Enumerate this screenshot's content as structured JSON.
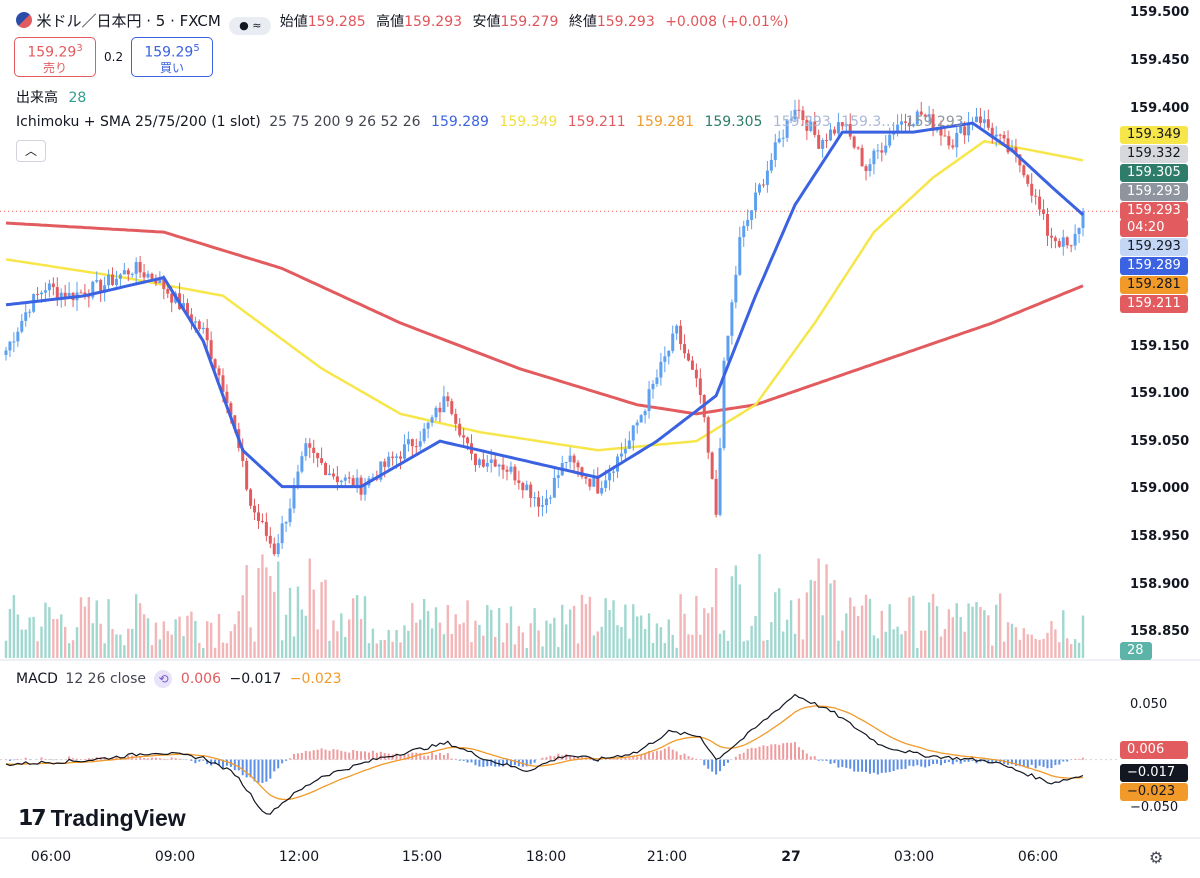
{
  "header": {
    "symbol": "米ドル／日本円 · 5 · FXCM",
    "open_label": "始値",
    "open": "159.285",
    "high_label": "高値",
    "high": "159.293",
    "low_label": "安値",
    "low": "159.279",
    "close_label": "終値",
    "close": "159.293",
    "change": "+0.008 (+0.01%)"
  },
  "trade": {
    "sell_price": "159.29",
    "sell_sup": "3",
    "sell_label": "売り",
    "spread": "0.2",
    "buy_price": "159.29",
    "buy_sup": "5",
    "buy_label": "買い"
  },
  "volume_legend": {
    "label": "出来高",
    "value": "28"
  },
  "ichimoku_legend": {
    "label": "Ichimoku + SMA 25/75/200 (1 slot)",
    "params": "25 75 200 9 26 52 26",
    "values": [
      "159.289",
      "159.349",
      "159.211",
      "159.281",
      "159.305",
      "159.293",
      "159.3…",
      "159.293"
    ]
  },
  "macd_legend": {
    "label": "MACD",
    "params": "12 26 close",
    "hist": "0.006",
    "macd": "−0.017",
    "signal": "−0.023"
  },
  "price_axis": [
    "159.500",
    "159.450",
    "159.400",
    "159.150",
    "159.100",
    "159.050",
    "159.000",
    "158.950",
    "158.900",
    "158.850"
  ],
  "price_badges": [
    {
      "value": "159.349",
      "color": "#f7e64a",
      "text_color": "#131722"
    },
    {
      "value": "159.332",
      "color": "#d6d8dc",
      "text_color": "#131722"
    },
    {
      "value": "159.305",
      "color": "#2e7d6a",
      "text_color": "#ffffff"
    },
    {
      "value": "159.293",
      "color": "#8f959e",
      "text_color": "#ffffff"
    },
    {
      "value": "159.293",
      "color": "#e25b5f",
      "text_color": "#ffffff"
    },
    {
      "value": "04:20",
      "color": "#e25b5f",
      "text_color": "#ffffff"
    },
    {
      "value": "159.293",
      "color": "#c3d6f5",
      "text_color": "#131722"
    },
    {
      "value": "159.289",
      "color": "#3b62e0",
      "text_color": "#ffffff"
    },
    {
      "value": "159.281",
      "color": "#f19a2a",
      "text_color": "#131722"
    },
    {
      "value": "159.211",
      "color": "#e25b5f",
      "text_color": "#ffffff"
    }
  ],
  "volume_badge": "28",
  "macd_axis": [
    "0.050",
    "−0.050"
  ],
  "macd_badges": [
    {
      "value": "0.006",
      "color": "#e25b5f",
      "text_color": "#ffffff"
    },
    {
      "value": "−0.017",
      "color": "#131722",
      "text_color": "#ffffff"
    },
    {
      "value": "−0.023",
      "color": "#f19a2a",
      "text_color": "#131722"
    }
  ],
  "time_axis": [
    {
      "label": "06:00"
    },
    {
      "label": "09:00"
    },
    {
      "label": "12:00"
    },
    {
      "label": "15:00"
    },
    {
      "label": "18:00"
    },
    {
      "label": "21:00"
    },
    {
      "label": "27"
    },
    {
      "label": "03:00"
    },
    {
      "label": "06:00"
    }
  ],
  "brand": "TradingView",
  "colors": {
    "up": "#5ea0f0",
    "down": "#e25b5f",
    "sma25": "#3b62e0",
    "sma75": "#f7e64a",
    "sma200": "#e25b5f"
  },
  "chart_data": {
    "type": "candlestick",
    "symbol": "USD/JPY",
    "interval": "5",
    "x_ticks": [
      "06:00",
      "09:00",
      "12:00",
      "15:00",
      "18:00",
      "21:00",
      "27",
      "03:00",
      "06:00"
    ],
    "ylim": [
      158.83,
      159.51
    ],
    "price_anchors": [
      [
        0,
        159.14
      ],
      [
        6,
        159.19
      ],
      [
        10,
        159.21
      ],
      [
        16,
        159.2
      ],
      [
        24,
        159.21
      ],
      [
        32,
        159.23
      ],
      [
        38,
        159.22
      ],
      [
        44,
        159.19
      ],
      [
        50,
        159.16
      ],
      [
        56,
        159.09
      ],
      [
        62,
        158.97
      ],
      [
        68,
        158.92
      ],
      [
        72,
        158.97
      ],
      [
        76,
        159.03
      ],
      [
        84,
        159.0
      ],
      [
        90,
        158.99
      ],
      [
        98,
        159.02
      ],
      [
        106,
        159.05
      ],
      [
        112,
        159.09
      ],
      [
        118,
        159.02
      ],
      [
        124,
        159.02
      ],
      [
        130,
        159.0
      ],
      [
        136,
        158.97
      ],
      [
        142,
        159.02
      ],
      [
        150,
        158.99
      ],
      [
        158,
        159.04
      ],
      [
        164,
        159.1
      ],
      [
        170,
        159.16
      ],
      [
        176,
        159.09
      ],
      [
        180,
        158.96
      ],
      [
        182,
        159.12
      ],
      [
        186,
        159.26
      ],
      [
        192,
        159.33
      ],
      [
        200,
        159.41
      ],
      [
        206,
        159.37
      ],
      [
        212,
        159.39
      ],
      [
        218,
        159.34
      ],
      [
        226,
        159.39
      ],
      [
        232,
        159.4
      ],
      [
        240,
        159.37
      ],
      [
        246,
        159.4
      ],
      [
        252,
        159.37
      ],
      [
        258,
        159.34
      ],
      [
        264,
        159.27
      ],
      [
        270,
        159.25
      ],
      [
        273,
        159.293
      ]
    ],
    "sma25_anchors": [
      [
        0,
        159.19
      ],
      [
        20,
        159.2
      ],
      [
        40,
        159.22
      ],
      [
        50,
        159.15
      ],
      [
        60,
        159.03
      ],
      [
        70,
        158.99
      ],
      [
        90,
        158.99
      ],
      [
        110,
        159.04
      ],
      [
        130,
        159.02
      ],
      [
        150,
        159.0
      ],
      [
        165,
        159.04
      ],
      [
        180,
        159.09
      ],
      [
        190,
        159.2
      ],
      [
        200,
        159.3
      ],
      [
        212,
        159.38
      ],
      [
        230,
        159.38
      ],
      [
        245,
        159.39
      ],
      [
        255,
        159.36
      ],
      [
        265,
        159.32
      ],
      [
        273,
        159.289
      ]
    ],
    "sma75_anchors": [
      [
        0,
        159.24
      ],
      [
        30,
        159.22
      ],
      [
        55,
        159.2
      ],
      [
        80,
        159.12
      ],
      [
        100,
        159.07
      ],
      [
        120,
        159.05
      ],
      [
        150,
        159.03
      ],
      [
        175,
        159.04
      ],
      [
        190,
        159.08
      ],
      [
        205,
        159.17
      ],
      [
        220,
        159.27
      ],
      [
        235,
        159.33
      ],
      [
        248,
        159.37
      ],
      [
        260,
        159.36
      ],
      [
        273,
        159.349
      ]
    ],
    "sma200_anchors": [
      [
        0,
        159.28
      ],
      [
        40,
        159.27
      ],
      [
        70,
        159.23
      ],
      [
        100,
        159.17
      ],
      [
        130,
        159.12
      ],
      [
        160,
        159.08
      ],
      [
        175,
        159.07
      ],
      [
        190,
        159.08
      ],
      [
        210,
        159.11
      ],
      [
        230,
        159.14
      ],
      [
        250,
        159.17
      ],
      [
        273,
        159.211
      ]
    ],
    "sma_periods": [
      25,
      75,
      200
    ],
    "last": 159.293,
    "macd_ylim": [
      -0.065,
      0.075
    ],
    "macd_anchors": [
      [
        0,
        -0.005
      ],
      [
        20,
        -0.001
      ],
      [
        38,
        0.008
      ],
      [
        50,
        0.002
      ],
      [
        58,
        -0.015
      ],
      [
        66,
        -0.06
      ],
      [
        72,
        -0.04
      ],
      [
        80,
        -0.018
      ],
      [
        95,
        0.002
      ],
      [
        112,
        0.018
      ],
      [
        122,
        0.0
      ],
      [
        132,
        -0.012
      ],
      [
        142,
        0.005
      ],
      [
        150,
        0.0
      ],
      [
        160,
        0.008
      ],
      [
        168,
        0.03
      ],
      [
        176,
        0.025
      ],
      [
        180,
        0.0
      ],
      [
        186,
        0.02
      ],
      [
        200,
        0.07
      ],
      [
        210,
        0.05
      ],
      [
        222,
        0.015
      ],
      [
        232,
        0.005
      ],
      [
        250,
        -0.002
      ],
      [
        265,
        -0.025
      ],
      [
        273,
        -0.017
      ]
    ]
  }
}
